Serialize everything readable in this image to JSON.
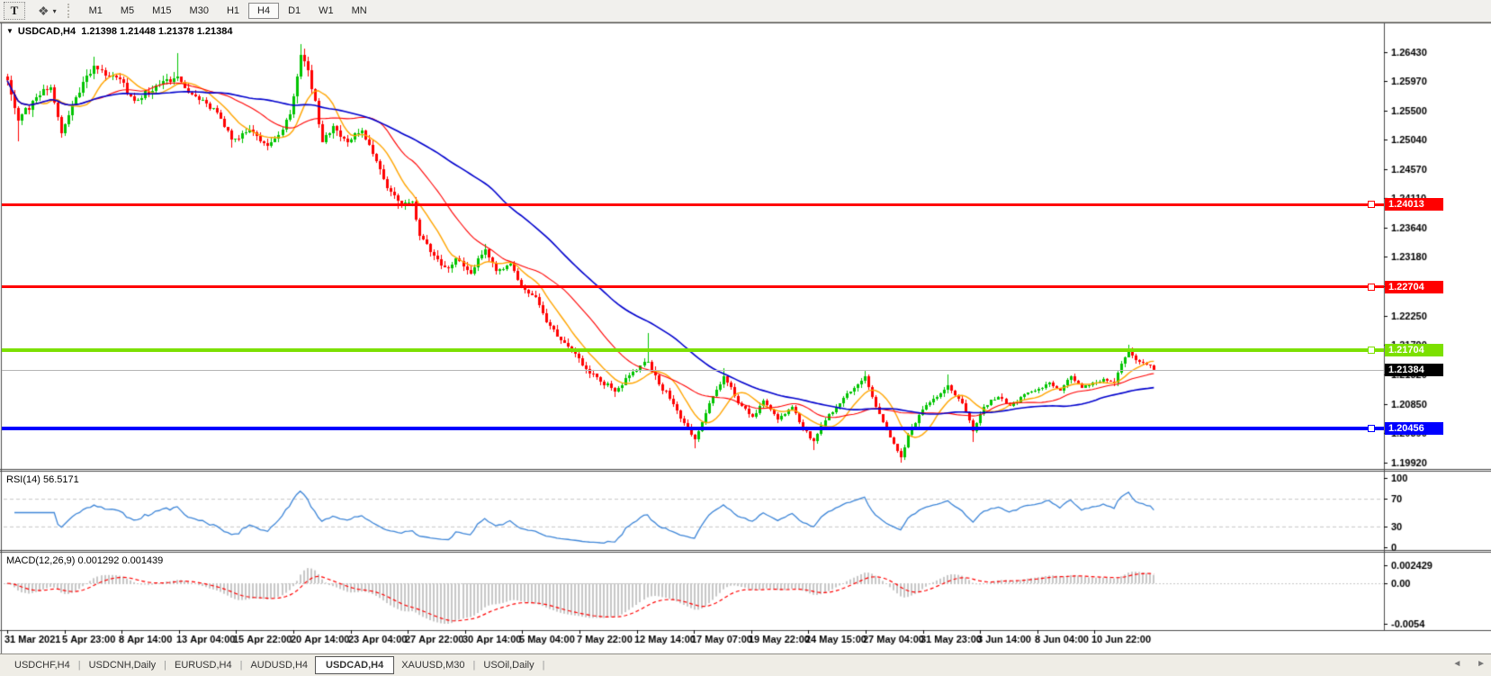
{
  "icons": {
    "menu_caret": "▼",
    "caret_down": "▾",
    "mode_glyph": "❖",
    "arrow_left": "◄",
    "arrow_right": "►"
  },
  "toolbar": {
    "text_tool_label": "T",
    "timeframes": [
      "M1",
      "M5",
      "M15",
      "M30",
      "H1",
      "H4",
      "D1",
      "W1",
      "MN"
    ],
    "active_timeframe": "H4"
  },
  "chart": {
    "title_symbol": "USDCAD,H4",
    "title_ohlc": "1.21398 1.21448 1.21378 1.21384",
    "rsi_label": "RSI(14) 56.5171",
    "macd_label": "MACD(12,26,9) 0.001292 0.001439"
  },
  "tabs": {
    "divider": "|",
    "items": [
      {
        "label": "USDCHF,H4"
      },
      {
        "label": "USDCNH,Daily"
      },
      {
        "label": "EURUSD,H4"
      },
      {
        "label": "AUDUSD,H4"
      },
      {
        "label": "USDCAD,H4",
        "active": true
      },
      {
        "label": "XAUUSD,M30"
      },
      {
        "label": "USOil,Daily"
      }
    ]
  },
  "chart_data": {
    "type": "candlestick",
    "symbol": "USDCAD",
    "timeframe": "H4",
    "ohlc_current": {
      "open": 1.21398,
      "high": 1.21448,
      "low": 1.21378,
      "close": 1.21384
    },
    "bull_color": "#00C400",
    "bear_color": "#FF0000",
    "price_axis": {
      "ticks": [
        "1.26430",
        "1.25970",
        "1.25500",
        "1.25040",
        "1.24570",
        "1.24110",
        "1.23640",
        "1.23180",
        "1.22710",
        "1.22250",
        "1.21790",
        "1.21320",
        "1.20850",
        "1.20390",
        "1.19920"
      ],
      "ylim": [
        1.1983,
        1.26887
      ]
    },
    "time_axis": {
      "labels": [
        "31 Mar 2021",
        "5 Apr 23:00",
        "8 Apr 14:00",
        "13 Apr 04:00",
        "15 Apr 22:00",
        "20 Apr 14:00",
        "23 Apr 04:00",
        "27 Apr 22:00",
        "30 Apr 14:00",
        "5 May 04:00",
        "7 May 22:00",
        "12 May 14:00",
        "17 May 07:00",
        "19 May 22:00",
        "24 May 15:00",
        "27 May 04:00",
        "31 May 23:00",
        "3 Jun 14:00",
        "8 Jun 04:00",
        "10 Jun 22:00"
      ]
    },
    "horizontal_lines": [
      {
        "label": "1.24013",
        "price": 1.24013,
        "line_color": "#FF0000",
        "badge_color": "#FF0000",
        "thickness": 3,
        "marker": true
      },
      {
        "label": "1.22704",
        "price": 1.22704,
        "line_color": "#FF0000",
        "badge_color": "#FF0000",
        "thickness": 3,
        "marker": true
      },
      {
        "label": "1.21704",
        "price": 1.21704,
        "line_color": "#7CE000",
        "badge_color": "#7CE000",
        "thickness": 4,
        "marker": true
      },
      {
        "label": "1.20456",
        "price": 1.20456,
        "line_color": "#0000FF",
        "badge_color": "#0000FF",
        "thickness": 4,
        "marker": true
      },
      {
        "label": "1.21384",
        "price": 1.21384,
        "line_color": "#B4B4B4",
        "badge_color": "#000000",
        "thickness": 1,
        "marker": false,
        "is_current_price": true
      }
    ],
    "moving_averages": [
      {
        "period": 10,
        "color": "#FFA500",
        "width": 1.4
      },
      {
        "period": 25,
        "color": "#FF0000",
        "width": 1.1
      },
      {
        "period": 55,
        "color": "#0000CD",
        "width": 1.6
      }
    ],
    "rsi": {
      "period": 14,
      "value": 56.5171,
      "levels": [
        100,
        70,
        30,
        0
      ],
      "dashed_levels": [
        70,
        30
      ],
      "color": "#3E86D8"
    },
    "macd": {
      "fast": 12,
      "slow": 26,
      "signal": 9,
      "value": 0.001292,
      "signal_value": 0.001439,
      "axis_labels": [
        "0.002429",
        "0.00",
        "-0.0054"
      ],
      "histogram_color": "#C8C8C8",
      "signal_color": "#FF0000"
    },
    "bars": 318,
    "seed": 11,
    "waypoints": [
      [
        0,
        1.2598,
        0.0013
      ],
      [
        3,
        1.2535,
        0.0013
      ],
      [
        8,
        1.2572,
        0.0012
      ],
      [
        12,
        1.2588,
        0.001
      ],
      [
        15,
        1.2515,
        0.0012
      ],
      [
        19,
        1.2572,
        0.0012
      ],
      [
        24,
        1.2622,
        0.0012
      ],
      [
        28,
        1.2605,
        0.001
      ],
      [
        31,
        1.26,
        0.001
      ],
      [
        35,
        1.2566,
        0.001
      ],
      [
        42,
        1.2592,
        0.001
      ],
      [
        47,
        1.2605,
        0.0012
      ],
      [
        50,
        1.2578,
        0.001
      ],
      [
        54,
        1.2568,
        0.0009
      ],
      [
        58,
        1.2548,
        0.0009
      ],
      [
        62,
        1.2505,
        0.001
      ],
      [
        67,
        1.252,
        0.0009
      ],
      [
        72,
        1.2494,
        0.0009
      ],
      [
        75,
        1.2512,
        0.0009
      ],
      [
        78,
        1.2545,
        0.0011
      ],
      [
        81,
        1.2638,
        0.0014
      ],
      [
        83,
        1.2615,
        0.0014
      ],
      [
        87,
        1.25,
        0.0013
      ],
      [
        90,
        1.2526,
        0.001
      ],
      [
        94,
        1.25,
        0.0009
      ],
      [
        98,
        1.2518,
        0.0009
      ],
      [
        102,
        1.247,
        0.001
      ],
      [
        105,
        1.2428,
        0.001
      ],
      [
        109,
        1.24,
        0.0009
      ],
      [
        112,
        1.2406,
        0.0009
      ],
      [
        114,
        1.2352,
        0.001
      ],
      [
        118,
        1.232,
        0.001
      ],
      [
        122,
        1.23,
        0.0009
      ],
      [
        124,
        1.2316,
        0.0009
      ],
      [
        128,
        1.2292,
        0.0009
      ],
      [
        132,
        1.233,
        0.0009
      ],
      [
        135,
        1.2296,
        0.0008
      ],
      [
        139,
        1.2308,
        0.0008
      ],
      [
        142,
        1.227,
        0.0008
      ],
      [
        146,
        1.2254,
        0.0008
      ],
      [
        149,
        1.2215,
        0.0009
      ],
      [
        153,
        1.2186,
        0.0009
      ],
      [
        157,
        1.2164,
        0.0009
      ],
      [
        160,
        1.214,
        0.0009
      ],
      [
        164,
        1.212,
        0.0008
      ],
      [
        168,
        1.2104,
        0.0008
      ],
      [
        172,
        1.213,
        0.0008
      ],
      [
        175,
        1.2146,
        0.0008
      ],
      [
        177,
        1.2152,
        0.0009
      ],
      [
        180,
        1.2116,
        0.0008
      ],
      [
        184,
        1.2085,
        0.0008
      ],
      [
        188,
        1.2046,
        0.0008
      ],
      [
        190,
        1.2028,
        0.0008
      ],
      [
        194,
        1.2086,
        0.0008
      ],
      [
        198,
        1.2128,
        0.0008
      ],
      [
        202,
        1.2086,
        0.0007
      ],
      [
        206,
        1.2064,
        0.0007
      ],
      [
        209,
        1.209,
        0.0007
      ],
      [
        213,
        1.206,
        0.0007
      ],
      [
        217,
        1.208,
        0.0007
      ],
      [
        220,
        1.2046,
        0.0007
      ],
      [
        223,
        1.2026,
        0.0007
      ],
      [
        227,
        1.2068,
        0.0007
      ],
      [
        230,
        1.2086,
        0.0007
      ],
      [
        234,
        1.211,
        0.0007
      ],
      [
        237,
        1.2128,
        0.0007
      ],
      [
        240,
        1.208,
        0.0007
      ],
      [
        244,
        1.2032,
        0.0007
      ],
      [
        247,
        1.2,
        0.0007
      ],
      [
        249,
        1.2036,
        0.0007
      ],
      [
        253,
        1.2076,
        0.0007
      ],
      [
        257,
        1.2096,
        0.0007
      ],
      [
        260,
        1.2114,
        0.0007
      ],
      [
        264,
        1.2086,
        0.0007
      ],
      [
        267,
        1.2042,
        0.0007
      ],
      [
        270,
        1.208,
        0.0006
      ],
      [
        274,
        1.2096,
        0.0006
      ],
      [
        277,
        1.2082,
        0.0006
      ],
      [
        281,
        1.21,
        0.0006
      ],
      [
        285,
        1.2108,
        0.0006
      ],
      [
        288,
        1.2118,
        0.0006
      ],
      [
        291,
        1.2106,
        0.0006
      ],
      [
        294,
        1.2128,
        0.0006
      ],
      [
        297,
        1.211,
        0.0006
      ],
      [
        300,
        1.2118,
        0.0006
      ],
      [
        303,
        1.2124,
        0.0006
      ],
      [
        306,
        1.2118,
        0.0006
      ],
      [
        308,
        1.2148,
        0.0008
      ],
      [
        310,
        1.217,
        0.0008
      ],
      [
        312,
        1.2154,
        0.0006
      ],
      [
        314,
        1.215,
        0.0005
      ],
      [
        316,
        1.2146,
        0.0005
      ],
      [
        317,
        1.21384,
        0.0004
      ]
    ],
    "key_points": [
      {
        "i": 3,
        "low": 1.2502
      },
      {
        "i": 15,
        "low": 1.2508
      },
      {
        "i": 24,
        "high": 1.2636
      },
      {
        "i": 47,
        "high": 1.2641
      },
      {
        "i": 62,
        "low": 1.2492
      },
      {
        "i": 72,
        "low": 1.2488
      },
      {
        "i": 81,
        "high": 1.2656
      },
      {
        "i": 108,
        "low": 1.2394
      },
      {
        "i": 132,
        "high": 1.2338
      },
      {
        "i": 168,
        "low": 1.2096
      },
      {
        "i": 177,
        "high": 1.2197
      },
      {
        "i": 190,
        "low": 1.2014
      },
      {
        "i": 198,
        "high": 1.2142
      },
      {
        "i": 223,
        "low": 1.2012
      },
      {
        "i": 237,
        "high": 1.2137
      },
      {
        "i": 247,
        "low": 1.1992
      },
      {
        "i": 260,
        "high": 1.2131
      },
      {
        "i": 267,
        "low": 1.2025
      },
      {
        "i": 310,
        "high": 1.2179
      }
    ]
  }
}
